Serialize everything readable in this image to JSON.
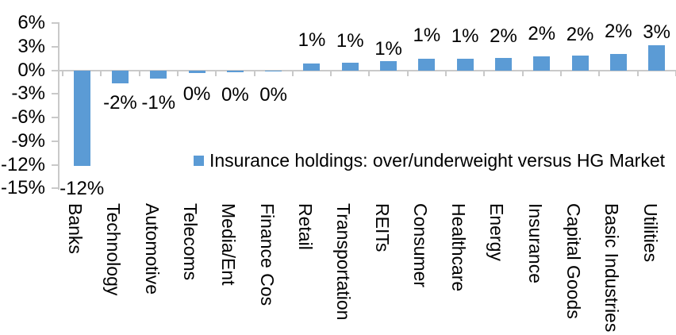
{
  "chart_data": {
    "type": "bar",
    "title": "",
    "legend": {
      "label": "Insurance holdings: over/underweight versus HG Market",
      "position": "inside-bottom"
    },
    "categories": [
      "Banks",
      "Technology",
      "Automotive",
      "Telecoms",
      "Media/Ent",
      "Finance Cos",
      "Retail",
      "Transportation",
      "REITs",
      "Consumer",
      "Healthcare",
      "Energy",
      "Insurance",
      "Capital Goods",
      "Basic Industries",
      "Utilities"
    ],
    "values": [
      -12.1,
      -1.65,
      -1.05,
      -0.35,
      -0.25,
      -0.1,
      0.85,
      0.95,
      1.2,
      1.45,
      1.45,
      1.62,
      1.75,
      1.85,
      2.1,
      3.2
    ],
    "data_labels": [
      "-12%",
      "-2%",
      "-1%",
      "0%",
      "0%",
      "0%",
      "1%",
      "1%",
      "1%",
      "1%",
      "1%",
      "2%",
      "2%",
      "2%",
      "2%",
      "3%"
    ],
    "label_dy": [
      5,
      1,
      7,
      3,
      5,
      6,
      -6,
      -4,
      8,
      -6,
      -5,
      -4,
      -5,
      -3,
      -5,
      7
    ],
    "y_axis": {
      "ticks": [
        "6%",
        "3%",
        "0%",
        "-3%",
        "-6%",
        "-9%",
        "-12%",
        "-15%"
      ],
      "tick_values": [
        6,
        3,
        0,
        -3,
        -6,
        -9,
        -12,
        -15
      ],
      "min": -15,
      "max": 6,
      "step": 3
    },
    "x_axis": {
      "label_rotation_deg": 90
    },
    "gridlines": false,
    "colors": {
      "bar": "#5B9BD5",
      "axis": "#C9C9C9",
      "text": "#000000",
      "background": "#FFFFFF"
    }
  }
}
